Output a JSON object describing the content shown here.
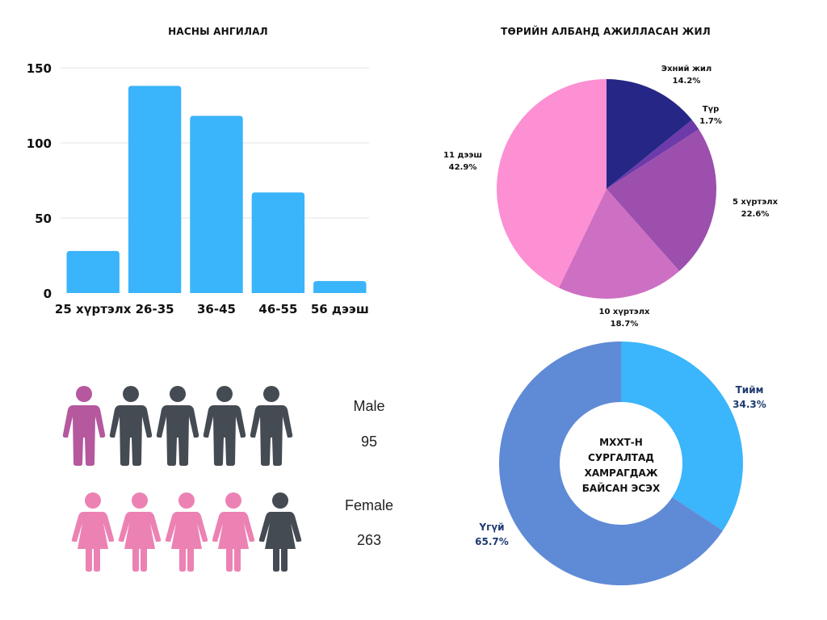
{
  "chart_data": [
    {
      "type": "bar",
      "title": "НАСНЫ АНГИЛАЛ",
      "categories": [
        "25 хүртэлх",
        "26-35",
        "36-45",
        "46-55",
        "56 дээш"
      ],
      "values": [
        28,
        138,
        118,
        67,
        8
      ],
      "yticks": [
        "0",
        "50",
        "100",
        "150"
      ],
      "ytick_values": [
        0,
        50,
        100,
        150
      ],
      "ylim": [
        0,
        150
      ],
      "xlabel": "",
      "ylabel": "",
      "grid": true,
      "color": "#3ab4fb"
    },
    {
      "type": "pie",
      "title": "ТӨРИЙН АЛБАНД АЖИЛЛАСАН ЖИЛ",
      "slices": [
        {
          "label": "Эхний жил",
          "value": 14.2,
          "text": "14.2%",
          "color": "#262686"
        },
        {
          "label": "Түр",
          "value": 1.7,
          "text": "1.7%",
          "color": "#6c3aa9"
        },
        {
          "label": "5 хүртэлх",
          "value": 22.6,
          "text": "22.6%",
          "color": "#9c4fad"
        },
        {
          "label": "10 хүртэлх",
          "value": 18.7,
          "text": "18.7%",
          "color": "#cd6fc2"
        },
        {
          "label": "11 дээш",
          "value": 42.9,
          "text": "42.9%",
          "color": "#fd8fd3"
        }
      ]
    },
    {
      "type": "pie",
      "subtype": "donut",
      "center_text": [
        "МХХТ-Н",
        "СУРГАЛТАД",
        "ХАМРАГДАЖ",
        "БАЙСАН ЭСЭХ"
      ],
      "slices": [
        {
          "label": "Тийм",
          "value": 34.3,
          "text": "34.3%",
          "color": "#3bb5fb"
        },
        {
          "label": "Үгүй",
          "value": 65.7,
          "text": "65.7%",
          "color": "#5f8ad6"
        }
      ],
      "label_color": "#1e3a6e"
    }
  ],
  "gender": {
    "male": {
      "label": "Male",
      "value": "95",
      "highlighted": 1,
      "total": 5,
      "color": "#b5589e"
    },
    "female": {
      "label": "Female",
      "value": "263",
      "highlighted": 4,
      "total": 5,
      "color": "#ec82b3"
    },
    "inactive_color": "#454b52"
  }
}
